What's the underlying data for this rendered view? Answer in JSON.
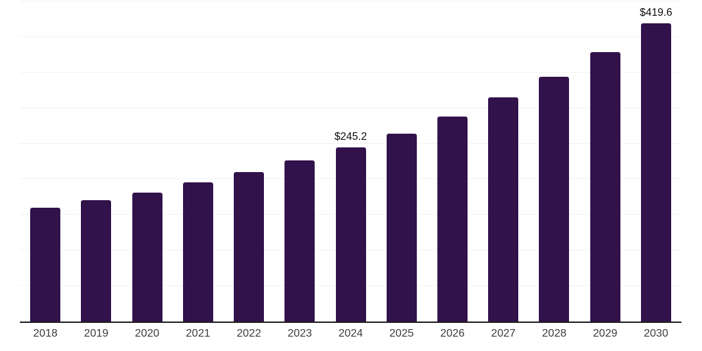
{
  "chart_data": {
    "type": "bar",
    "title": "",
    "xlabel": "",
    "ylabel": "",
    "categories": [
      "2018",
      "2019",
      "2020",
      "2021",
      "2022",
      "2023",
      "2024",
      "2025",
      "2026",
      "2027",
      "2028",
      "2029",
      "2030"
    ],
    "values": [
      160.0,
      170.5,
      181.5,
      195.5,
      210.0,
      226.0,
      245.2,
      264.5,
      288.0,
      315.0,
      344.5,
      379.0,
      419.6
    ],
    "data_labels": [
      {
        "index": 6,
        "text": "$245.2"
      },
      {
        "index": 12,
        "text": "$419.6"
      }
    ],
    "ylim": [
      0,
      450
    ],
    "grid_step": 50,
    "grid": "horizontal-only",
    "y_tick_labels_visible": false,
    "legend": "none",
    "colors": {
      "bar": "#31124b",
      "axis_line": "#1f1f1f",
      "gridline": "#f2f2f2",
      "x_tick_label": "#3c3c3c",
      "data_label": "#0d0d0d",
      "background": "#ffffff"
    }
  }
}
